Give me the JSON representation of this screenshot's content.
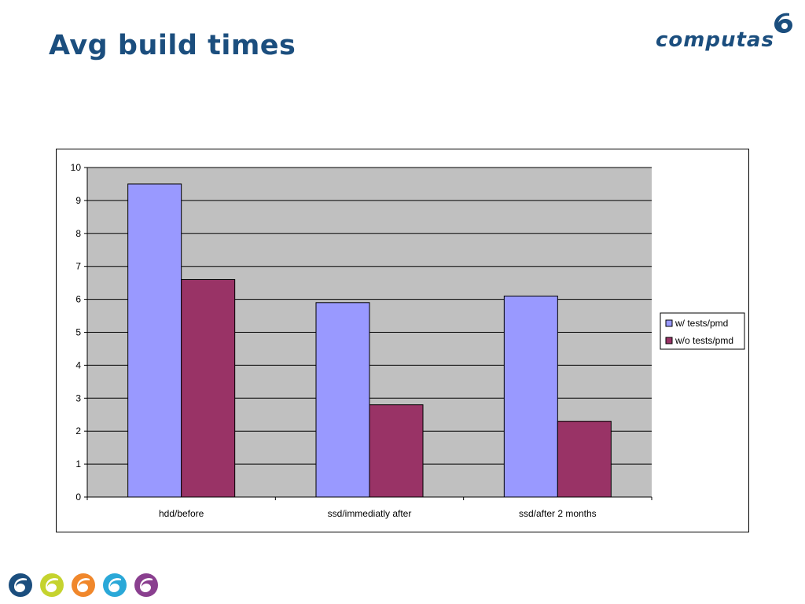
{
  "slide": {
    "title": "Avg build times",
    "logo_text": "computas"
  },
  "colors": {
    "title": "#1b4e7e",
    "plot_background": "#c0c0c0",
    "footer_icons": [
      "#1b4e7e",
      "#c5d32e",
      "#f0872b",
      "#2aa8d8",
      "#8a3f8f"
    ]
  },
  "chart_data": {
    "type": "bar",
    "categories": [
      "hdd/before",
      "ssd/immediatly after",
      "ssd/after 2 months"
    ],
    "series": [
      {
        "name": "w/ tests/pmd",
        "color": "#9999ff",
        "values": [
          9.5,
          5.9,
          6.1
        ]
      },
      {
        "name": "w/o tests/pmd",
        "color": "#993366",
        "values": [
          6.6,
          2.8,
          2.3
        ]
      }
    ],
    "yticks": [
      "0",
      "1",
      "2",
      "3",
      "4",
      "5",
      "6",
      "7",
      "8",
      "9",
      "10"
    ],
    "ylim": [
      0,
      10
    ],
    "grid": true,
    "legend_position": "right"
  }
}
